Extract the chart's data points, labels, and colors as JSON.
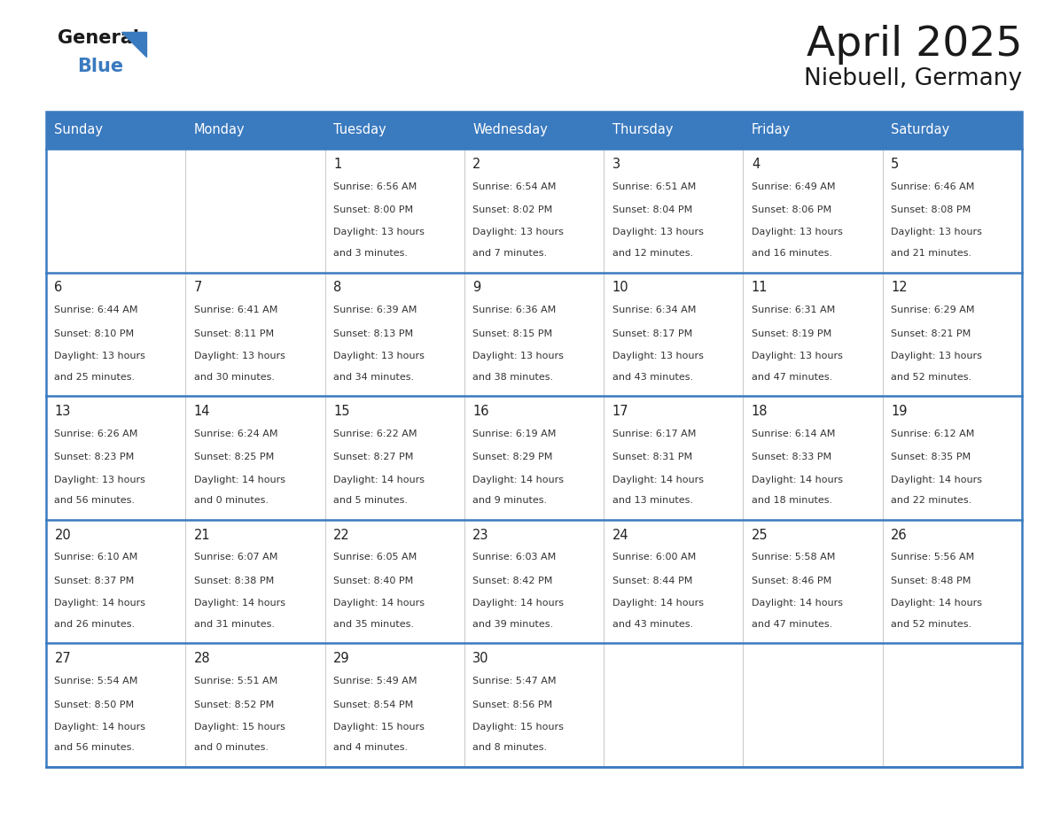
{
  "title": "April 2025",
  "subtitle": "Niebuell, Germany",
  "header_color": "#3a7abf",
  "header_text_color": "#ffffff",
  "border_color": "#3a7abf",
  "row_separator_color": "#3a7abf",
  "col_separator_color": "#cccccc",
  "text_color": "#333333",
  "day_number_color": "#222222",
  "title_color": "#1a1a1a",
  "logo_black_color": "#1a1a1a",
  "logo_blue_color": "#3a7abf",
  "days_of_week": [
    "Sunday",
    "Monday",
    "Tuesday",
    "Wednesday",
    "Thursday",
    "Friday",
    "Saturday"
  ],
  "calendar_data": [
    [
      {
        "day": "",
        "sunrise": "",
        "sunset": "",
        "daylight": ""
      },
      {
        "day": "",
        "sunrise": "",
        "sunset": "",
        "daylight": ""
      },
      {
        "day": "1",
        "sunrise": "6:56 AM",
        "sunset": "8:00 PM",
        "daylight": "13 hours\nand 3 minutes."
      },
      {
        "day": "2",
        "sunrise": "6:54 AM",
        "sunset": "8:02 PM",
        "daylight": "13 hours\nand 7 minutes."
      },
      {
        "day": "3",
        "sunrise": "6:51 AM",
        "sunset": "8:04 PM",
        "daylight": "13 hours\nand 12 minutes."
      },
      {
        "day": "4",
        "sunrise": "6:49 AM",
        "sunset": "8:06 PM",
        "daylight": "13 hours\nand 16 minutes."
      },
      {
        "day": "5",
        "sunrise": "6:46 AM",
        "sunset": "8:08 PM",
        "daylight": "13 hours\nand 21 minutes."
      }
    ],
    [
      {
        "day": "6",
        "sunrise": "6:44 AM",
        "sunset": "8:10 PM",
        "daylight": "13 hours\nand 25 minutes."
      },
      {
        "day": "7",
        "sunrise": "6:41 AM",
        "sunset": "8:11 PM",
        "daylight": "13 hours\nand 30 minutes."
      },
      {
        "day": "8",
        "sunrise": "6:39 AM",
        "sunset": "8:13 PM",
        "daylight": "13 hours\nand 34 minutes."
      },
      {
        "day": "9",
        "sunrise": "6:36 AM",
        "sunset": "8:15 PM",
        "daylight": "13 hours\nand 38 minutes."
      },
      {
        "day": "10",
        "sunrise": "6:34 AM",
        "sunset": "8:17 PM",
        "daylight": "13 hours\nand 43 minutes."
      },
      {
        "day": "11",
        "sunrise": "6:31 AM",
        "sunset": "8:19 PM",
        "daylight": "13 hours\nand 47 minutes."
      },
      {
        "day": "12",
        "sunrise": "6:29 AM",
        "sunset": "8:21 PM",
        "daylight": "13 hours\nand 52 minutes."
      }
    ],
    [
      {
        "day": "13",
        "sunrise": "6:26 AM",
        "sunset": "8:23 PM",
        "daylight": "13 hours\nand 56 minutes."
      },
      {
        "day": "14",
        "sunrise": "6:24 AM",
        "sunset": "8:25 PM",
        "daylight": "14 hours\nand 0 minutes."
      },
      {
        "day": "15",
        "sunrise": "6:22 AM",
        "sunset": "8:27 PM",
        "daylight": "14 hours\nand 5 minutes."
      },
      {
        "day": "16",
        "sunrise": "6:19 AM",
        "sunset": "8:29 PM",
        "daylight": "14 hours\nand 9 minutes."
      },
      {
        "day": "17",
        "sunrise": "6:17 AM",
        "sunset": "8:31 PM",
        "daylight": "14 hours\nand 13 minutes."
      },
      {
        "day": "18",
        "sunrise": "6:14 AM",
        "sunset": "8:33 PM",
        "daylight": "14 hours\nand 18 minutes."
      },
      {
        "day": "19",
        "sunrise": "6:12 AM",
        "sunset": "8:35 PM",
        "daylight": "14 hours\nand 22 minutes."
      }
    ],
    [
      {
        "day": "20",
        "sunrise": "6:10 AM",
        "sunset": "8:37 PM",
        "daylight": "14 hours\nand 26 minutes."
      },
      {
        "day": "21",
        "sunrise": "6:07 AM",
        "sunset": "8:38 PM",
        "daylight": "14 hours\nand 31 minutes."
      },
      {
        "day": "22",
        "sunrise": "6:05 AM",
        "sunset": "8:40 PM",
        "daylight": "14 hours\nand 35 minutes."
      },
      {
        "day": "23",
        "sunrise": "6:03 AM",
        "sunset": "8:42 PM",
        "daylight": "14 hours\nand 39 minutes."
      },
      {
        "day": "24",
        "sunrise": "6:00 AM",
        "sunset": "8:44 PM",
        "daylight": "14 hours\nand 43 minutes."
      },
      {
        "day": "25",
        "sunrise": "5:58 AM",
        "sunset": "8:46 PM",
        "daylight": "14 hours\nand 47 minutes."
      },
      {
        "day": "26",
        "sunrise": "5:56 AM",
        "sunset": "8:48 PM",
        "daylight": "14 hours\nand 52 minutes."
      }
    ],
    [
      {
        "day": "27",
        "sunrise": "5:54 AM",
        "sunset": "8:50 PM",
        "daylight": "14 hours\nand 56 minutes."
      },
      {
        "day": "28",
        "sunrise": "5:51 AM",
        "sunset": "8:52 PM",
        "daylight": "15 hours\nand 0 minutes."
      },
      {
        "day": "29",
        "sunrise": "5:49 AM",
        "sunset": "8:54 PM",
        "daylight": "15 hours\nand 4 minutes."
      },
      {
        "day": "30",
        "sunrise": "5:47 AM",
        "sunset": "8:56 PM",
        "daylight": "15 hours\nand 8 minutes."
      },
      {
        "day": "",
        "sunrise": "",
        "sunset": "",
        "daylight": ""
      },
      {
        "day": "",
        "sunrise": "",
        "sunset": "",
        "daylight": ""
      },
      {
        "day": "",
        "sunrise": "",
        "sunset": "",
        "daylight": ""
      }
    ]
  ],
  "fig_width": 11.88,
  "fig_height": 9.18,
  "dpi": 100
}
